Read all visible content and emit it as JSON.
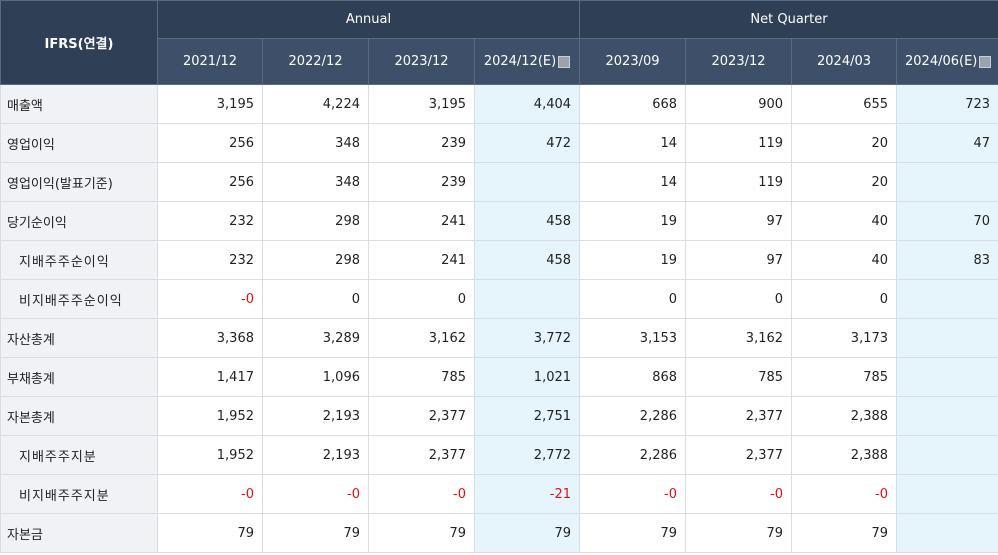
{
  "table": {
    "corner": "IFRS(연결)",
    "groups": [
      "Annual",
      "Net Quarter"
    ],
    "periods": [
      "2021/12",
      "2022/12",
      "2023/12",
      "2024/12(E)",
      "2023/09",
      "2023/12",
      "2024/03",
      "2024/06(E)"
    ],
    "rows": [
      {
        "label": "매출액",
        "values": [
          "3,195",
          "4,224",
          "3,195",
          "4,404",
          "668",
          "900",
          "655",
          "723"
        ]
      },
      {
        "label": "영업이익",
        "values": [
          "256",
          "348",
          "239",
          "472",
          "14",
          "119",
          "20",
          "47"
        ]
      },
      {
        "label": "영업이익(발표기준)",
        "values": [
          "256",
          "348",
          "239",
          null,
          "14",
          "119",
          "20",
          null
        ]
      },
      {
        "label": "당기순이익",
        "values": [
          "232",
          "298",
          "241",
          "458",
          "19",
          "97",
          "40",
          "70"
        ]
      },
      {
        "label": "지배주주순이익",
        "values": [
          "232",
          "298",
          "241",
          "458",
          "19",
          "97",
          "40",
          "83"
        ]
      },
      {
        "label": "비지배주주순이익",
        "values": [
          "-0",
          "0",
          "0",
          null,
          "0",
          "0",
          "0",
          null
        ]
      },
      {
        "label": "자산총계",
        "values": [
          "3,368",
          "3,289",
          "3,162",
          "3,772",
          "3,153",
          "3,162",
          "3,173",
          null
        ]
      },
      {
        "label": "부채총계",
        "values": [
          "1,417",
          "1,096",
          "785",
          "1,021",
          "868",
          "785",
          "785",
          null
        ]
      },
      {
        "label": "자본총계",
        "values": [
          "1,952",
          "2,193",
          "2,377",
          "2,751",
          "2,286",
          "2,377",
          "2,388",
          null
        ]
      },
      {
        "label": "지배주주지분",
        "values": [
          "1,952",
          "2,193",
          "2,377",
          "2,772",
          "2,286",
          "2,377",
          "2,388",
          null
        ]
      },
      {
        "label": "비지배주주지분",
        "values": [
          "-0",
          "-0",
          "-0",
          "-21",
          "-0",
          "-0",
          "-0",
          null
        ]
      },
      {
        "label": "자본금",
        "values": [
          "79",
          "79",
          "79",
          "79",
          "79",
          "79",
          "79",
          null
        ]
      }
    ]
  }
}
